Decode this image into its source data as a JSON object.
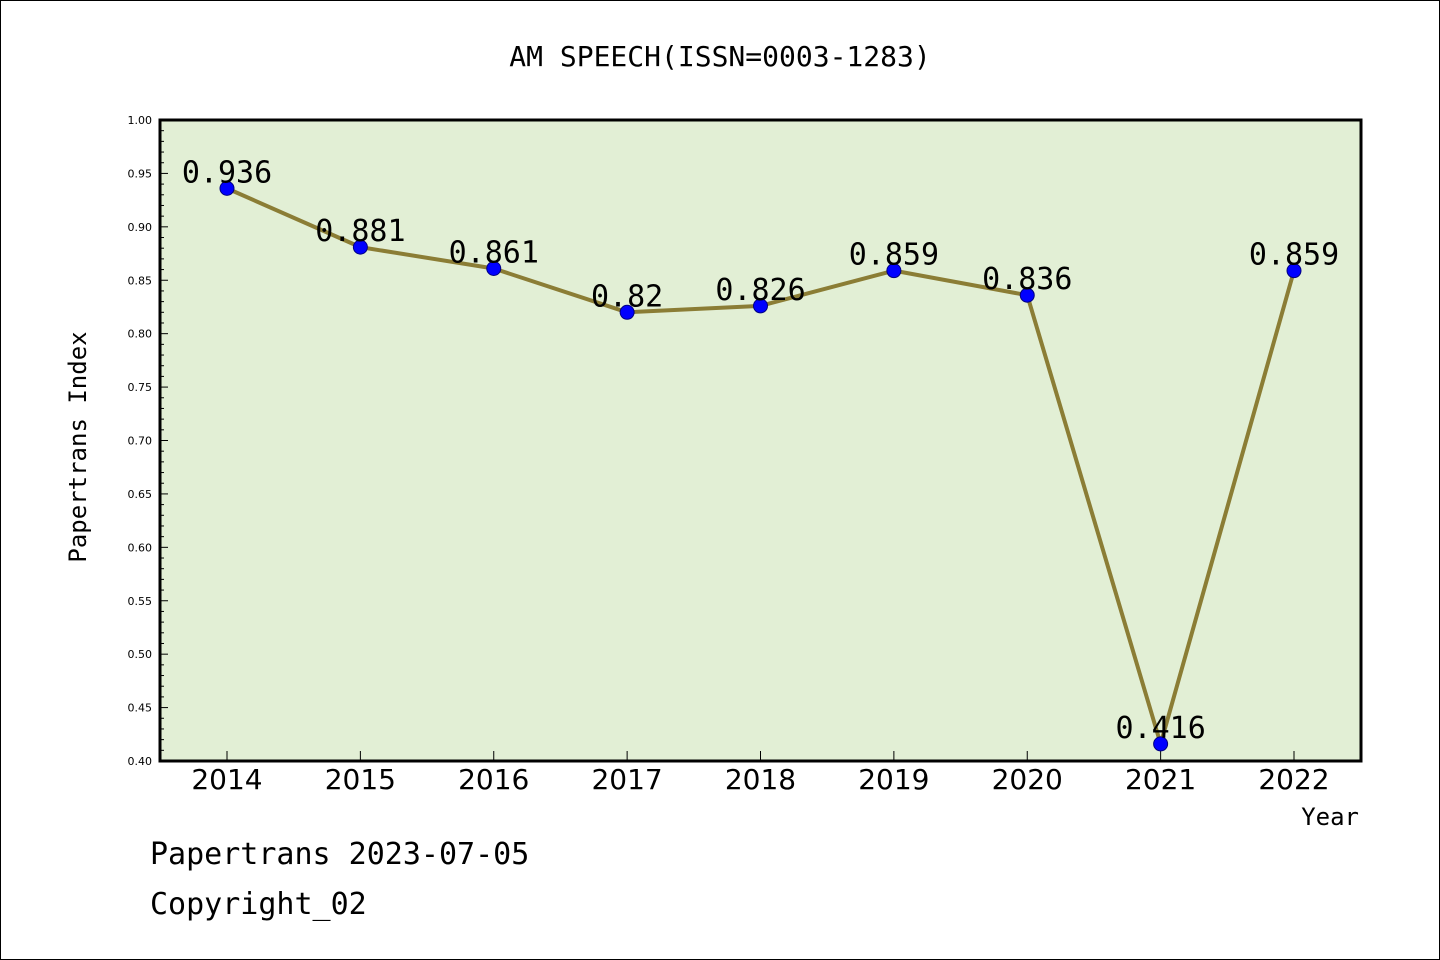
{
  "chart_data": {
    "type": "line",
    "title": "AM SPEECH(ISSN=0003-1283)",
    "xlabel": "Year",
    "ylabel": "Papertrans Index",
    "categories": [
      "2014",
      "2015",
      "2016",
      "2017",
      "2018",
      "2019",
      "2020",
      "2021",
      "2022"
    ],
    "series": [
      {
        "values": [
          0.936,
          0.881,
          0.861,
          0.82,
          0.826,
          0.859,
          0.836,
          0.416,
          0.859
        ],
        "data_labels": [
          "0.936",
          "0.881",
          "0.861",
          "0.82",
          "0.826",
          "0.859",
          "0.836",
          "0.416",
          "0.859"
        ]
      }
    ],
    "ylim": [
      0.4,
      1.0
    ],
    "yticks": [
      "0.40",
      "0.45",
      "0.50",
      "0.55",
      "0.60",
      "0.65",
      "0.70",
      "0.75",
      "0.80",
      "0.85",
      "0.90",
      "0.95",
      "1.00"
    ],
    "grid": false,
    "legend": "none",
    "colors": {
      "plot_background": "#e2efd5",
      "line": "#8b7d35",
      "marker_fill": "#0000ff",
      "marker_stroke": "#000080",
      "axis": "#000000"
    }
  },
  "footer": {
    "line1": "Papertrans 2023-07-05",
    "line2": "Copyright_02"
  }
}
